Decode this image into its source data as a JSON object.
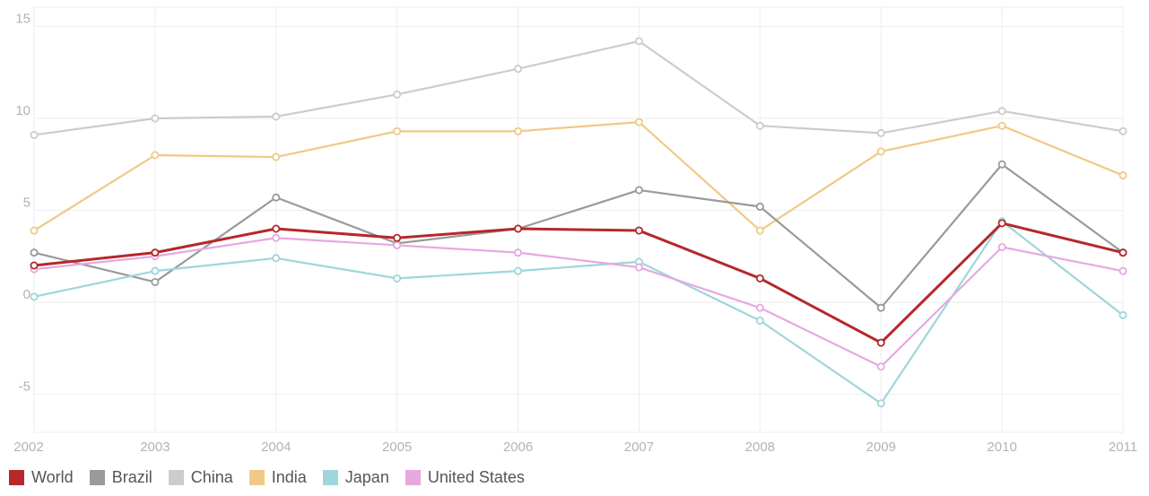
{
  "chart_data": {
    "type": "line",
    "x": [
      "2002",
      "2003",
      "2004",
      "2005",
      "2006",
      "2007",
      "2008",
      "2009",
      "2010",
      "2011"
    ],
    "y_ticks": [
      "15",
      "10",
      "5",
      "0",
      "-5"
    ],
    "ylim": [
      -7,
      16
    ],
    "grid": true,
    "legend_position": "bottom-left",
    "series": [
      {
        "name": "China",
        "color": "#cccccc",
        "values": [
          9.1,
          10.0,
          10.1,
          11.3,
          12.7,
          14.2,
          9.6,
          9.2,
          10.4,
          9.3
        ]
      },
      {
        "name": "India",
        "color": "#f0c987",
        "values": [
          3.9,
          8.0,
          7.9,
          9.3,
          9.3,
          9.8,
          3.9,
          8.2,
          9.6,
          6.9
        ]
      },
      {
        "name": "Brazil",
        "color": "#9a9a9a",
        "values": [
          2.7,
          1.1,
          5.7,
          3.2,
          4.0,
          6.1,
          5.2,
          -0.3,
          7.5,
          2.7
        ]
      },
      {
        "name": "Japan",
        "color": "#9fd6d9",
        "values": [
          0.3,
          1.7,
          2.4,
          1.3,
          1.7,
          2.2,
          -1.0,
          -5.5,
          4.4,
          -0.7
        ]
      },
      {
        "name": "United States",
        "color": "#e6a8e2",
        "values": [
          1.8,
          2.5,
          3.5,
          3.1,
          2.7,
          1.9,
          -0.3,
          -3.5,
          3.0,
          1.7
        ]
      },
      {
        "name": "World",
        "color": "#b5282b",
        "values": [
          2.0,
          2.7,
          4.0,
          3.5,
          4.0,
          3.9,
          1.3,
          -2.2,
          4.3,
          2.7
        ]
      }
    ]
  },
  "legend": [
    {
      "label": "World",
      "color": "#b5282b"
    },
    {
      "label": "Brazil",
      "color": "#9a9a9a"
    },
    {
      "label": "China",
      "color": "#cccccc"
    },
    {
      "label": "India",
      "color": "#f0c987"
    },
    {
      "label": "Japan",
      "color": "#9fd6d9"
    },
    {
      "label": "United States",
      "color": "#e6a8e2"
    }
  ]
}
